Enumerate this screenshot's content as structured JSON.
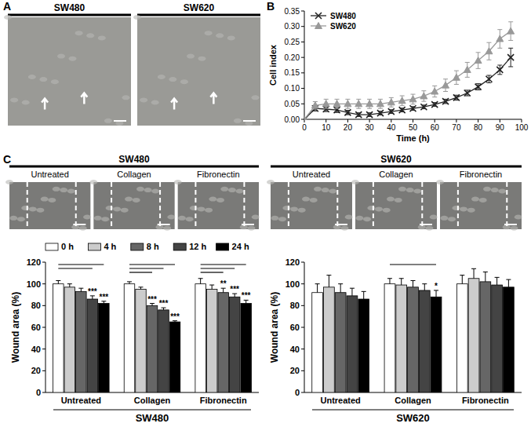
{
  "figure": {
    "panels": [
      "A",
      "B",
      "C"
    ],
    "panel_a": {
      "labels": [
        "SW480",
        "SW620"
      ]
    },
    "panel_c": {
      "cell_lines": [
        "SW480",
        "SW620"
      ],
      "treatments": [
        "Untreated",
        "Collagen",
        "Fibronectin"
      ]
    }
  },
  "chart_data": [
    {
      "type": "line",
      "xlabel": "Time (h)",
      "ylabel": "Cell index",
      "x": [
        0,
        5,
        10,
        15,
        20,
        25,
        30,
        35,
        40,
        45,
        50,
        55,
        60,
        65,
        70,
        75,
        80,
        85,
        90,
        95
      ],
      "series": [
        {
          "name": "SW480",
          "color": "#222222",
          "marker": "x",
          "line_style": "solid",
          "values": [
            0,
            0.035,
            0.033,
            0.03,
            0.022,
            0.015,
            0.015,
            0.02,
            0.025,
            0.03,
            0.035,
            0.04,
            0.048,
            0.058,
            0.07,
            0.085,
            0.105,
            0.13,
            0.16,
            0.2
          ],
          "errors": [
            0,
            0.008,
            0.008,
            0.008,
            0.007,
            0.006,
            0.006,
            0.006,
            0.006,
            0.006,
            0.006,
            0.006,
            0.006,
            0.007,
            0.008,
            0.009,
            0.01,
            0.012,
            0.015,
            0.03
          ]
        },
        {
          "name": "SW620",
          "color": "#999999",
          "marker": "triangle",
          "line_style": "solid",
          "values": [
            0,
            0.045,
            0.05,
            0.05,
            0.05,
            0.05,
            0.05,
            0.05,
            0.055,
            0.06,
            0.065,
            0.075,
            0.09,
            0.11,
            0.135,
            0.16,
            0.19,
            0.22,
            0.26,
            0.285
          ],
          "errors": [
            0,
            0.012,
            0.015,
            0.015,
            0.015,
            0.015,
            0.015,
            0.015,
            0.015,
            0.016,
            0.016,
            0.017,
            0.018,
            0.02,
            0.022,
            0.024,
            0.026,
            0.028,
            0.03,
            0.03
          ]
        }
      ],
      "xlim": [
        0,
        100
      ],
      "xticks": [
        0,
        10,
        20,
        30,
        40,
        50,
        60,
        70,
        80,
        90,
        100
      ],
      "ylim": [
        0,
        0.35
      ],
      "yticks": [
        {
          "value": 0,
          "label": "0.00"
        },
        {
          "value": 0.05,
          "label": "0.05"
        },
        {
          "value": 0.1,
          "label": "0.10"
        },
        {
          "value": 0.15,
          "label": "0.15"
        },
        {
          "value": 0.2,
          "label": "0.20"
        },
        {
          "value": 0.25,
          "label": "0.25"
        },
        {
          "value": 0.3,
          "label": "0.30"
        },
        {
          "value": 0.35,
          "label": "0.35"
        }
      ],
      "legend": "upper left",
      "grid": false
    },
    {
      "type": "bar",
      "xlabel": "SW480",
      "ylabel": "Wound area (%)",
      "categories": [
        "Untreated",
        "Collagen",
        "Fibronectin"
      ],
      "series": [
        {
          "name": "0 h",
          "color": "#ffffff",
          "values": [
            100,
            100,
            100
          ],
          "errors": [
            3,
            2,
            5
          ],
          "significance": [
            null,
            null,
            null
          ]
        },
        {
          "name": "4 h",
          "color": "#cccccc",
          "values": [
            97,
            95,
            95
          ],
          "errors": [
            3,
            2,
            4
          ],
          "significance": [
            null,
            null,
            null
          ]
        },
        {
          "name": "8 h",
          "color": "#666666",
          "values": [
            93,
            80,
            92
          ],
          "errors": [
            3,
            2,
            4
          ],
          "significance": [
            null,
            "***",
            "**"
          ]
        },
        {
          "name": "12 h",
          "color": "#444444",
          "values": [
            86,
            76,
            88
          ],
          "errors": [
            3,
            2,
            3
          ],
          "significance": [
            "***",
            "***",
            "***"
          ]
        },
        {
          "name": "24 h",
          "color": "#000000",
          "values": [
            82,
            65,
            82
          ],
          "errors": [
            2,
            1,
            3
          ],
          "significance": [
            "***",
            "***",
            "***"
          ]
        }
      ],
      "ylim": [
        0,
        120
      ],
      "yticks": [
        0,
        20,
        40,
        60,
        80,
        100,
        120
      ],
      "legend": "top",
      "grid": false
    },
    {
      "type": "bar",
      "xlabel": "SW620",
      "ylabel": "Wound area (%)",
      "categories": [
        "Untreated",
        "Collagen",
        "Fibronectin"
      ],
      "series": [
        {
          "name": "0 h",
          "color": "#ffffff",
          "values": [
            92,
            100,
            100
          ],
          "errors": [
            8,
            5,
            8
          ],
          "significance": [
            null,
            null,
            null
          ]
        },
        {
          "name": "4 h",
          "color": "#cccccc",
          "values": [
            97,
            99,
            105
          ],
          "errors": [
            11,
            6,
            9
          ],
          "significance": [
            null,
            null,
            null
          ]
        },
        {
          "name": "8 h",
          "color": "#666666",
          "values": [
            92,
            97,
            102
          ],
          "errors": [
            8,
            6,
            9
          ],
          "significance": [
            null,
            null,
            null
          ]
        },
        {
          "name": "12 h",
          "color": "#444444",
          "values": [
            89,
            94,
            99
          ],
          "errors": [
            7,
            6,
            7
          ],
          "significance": [
            null,
            null,
            null
          ]
        },
        {
          "name": "24 h",
          "color": "#000000",
          "values": [
            86,
            88,
            97
          ],
          "errors": [
            7,
            6,
            7
          ],
          "significance": [
            null,
            "*",
            null
          ]
        }
      ],
      "ylim": [
        0,
        120
      ],
      "yticks": [
        0,
        20,
        40,
        60,
        80,
        100,
        120
      ],
      "grid": false
    }
  ]
}
